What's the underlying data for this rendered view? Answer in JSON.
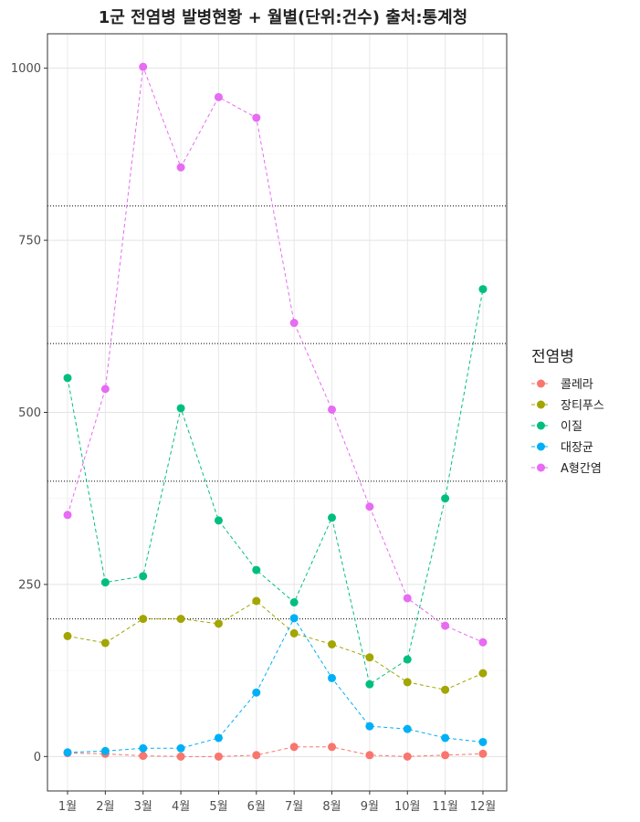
{
  "chart_data": {
    "type": "line",
    "title": "1군 전염병 발병현황 + 월별(단위:건수) 출처:통계청",
    "xlabel": "",
    "ylabel": "",
    "categories": [
      "1월",
      "2월",
      "3월",
      "4월",
      "5월",
      "6월",
      "7월",
      "8월",
      "9월",
      "10월",
      "11월",
      "12월"
    ],
    "y_ticks": [
      0,
      250,
      500,
      750,
      1000
    ],
    "ylim": [
      -50,
      1050
    ],
    "grid": true,
    "legend_placement": "right",
    "legend_title": "전염병",
    "reference_lines": [
      200,
      400,
      600,
      800
    ],
    "series": [
      {
        "name": "콜레라",
        "color": "#F8766D",
        "values": [
          5,
          4,
          1,
          0,
          0,
          2,
          14,
          14,
          2,
          0,
          2,
          4
        ]
      },
      {
        "name": "장티푸스",
        "color": "#A3A500",
        "values": [
          175,
          165,
          200,
          200,
          193,
          226,
          179,
          163,
          144,
          108,
          97,
          121
        ]
      },
      {
        "name": "이질",
        "color": "#00BF7D",
        "values": [
          550,
          253,
          262,
          506,
          343,
          271,
          224,
          347,
          105,
          141,
          375,
          679
        ]
      },
      {
        "name": "대장균",
        "color": "#00B0F6",
        "values": [
          6,
          8,
          12,
          12,
          27,
          93,
          201,
          114,
          44,
          40,
          27,
          21
        ]
      },
      {
        "name": "A형간염",
        "color": "#E76BF3",
        "values": [
          351,
          534,
          1002,
          856,
          958,
          928,
          630,
          504,
          363,
          230,
          190,
          166
        ]
      }
    ]
  }
}
